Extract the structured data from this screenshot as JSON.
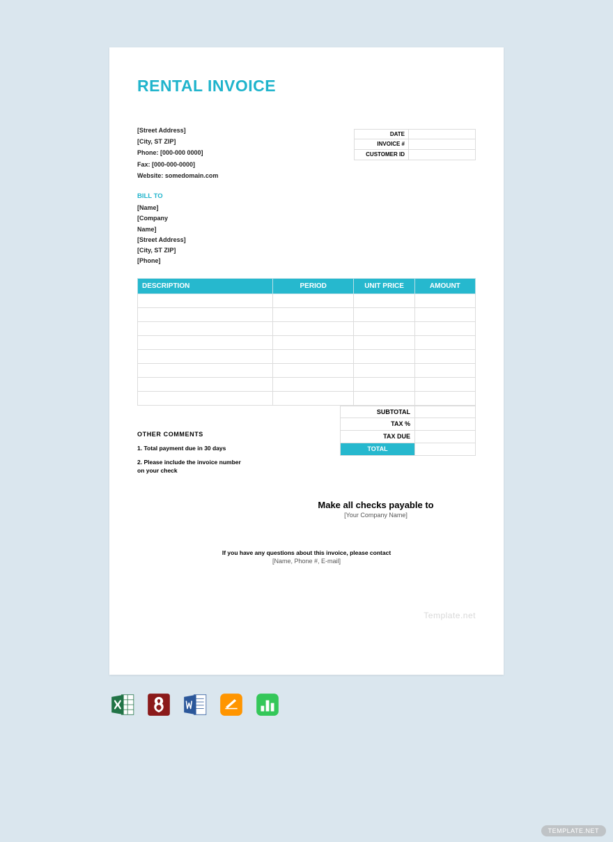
{
  "colors": {
    "page_bg": "#dae6ee",
    "accent": "#20b4cc",
    "header_bg": "#26b8ce",
    "border": "#dcdcdc"
  },
  "title": "RENTAL INVOICE",
  "from": {
    "street": "[Street Address]",
    "city": "[City, ST  ZIP]",
    "phone": "Phone: [000-000 0000]",
    "fax": "Fax: [000-000-0000]",
    "website": "Website: somedomain.com"
  },
  "meta": {
    "date_label": "DATE",
    "date_val": "",
    "invoice_label": "INVOICE #",
    "invoice_val": "",
    "customer_label": "CUSTOMER ID",
    "customer_val": ""
  },
  "billto_heading": "BILL TO",
  "billto": {
    "name": "[Name]",
    "company": "[Company Name]",
    "street": "[Street Address]",
    "city": "[City, ST  ZIP]",
    "phone": "[Phone]"
  },
  "table": {
    "headers": {
      "desc": "DESCRIPTION",
      "period": "PERIOD",
      "unit": "UNIT PRICE",
      "amount": "AMOUNT"
    },
    "row_count": 8
  },
  "totals": {
    "subtotal_label": "SUBTOTAL",
    "subtotal_val": "",
    "taxpct_label": "TAX %",
    "taxpct_val": "",
    "taxdue_label": "TAX DUE",
    "taxdue_val": "",
    "total_label": "TOTAL",
    "total_val": ""
  },
  "comments": {
    "heading": "OTHER  COMMENTS",
    "line1": "1. Total payment due in 30 days",
    "line2": "2. Please include the invoice number on your check"
  },
  "payable": {
    "heading": "Make all checks payable to",
    "sub": "[Your Company Name]"
  },
  "footer": {
    "line1": "If you have any questions about this invoice, please contact",
    "line2": "[Name,   Phone #,   E-mail]"
  },
  "watermark": "Template.net",
  "badge": "TEMPLATE.NET",
  "icons": {
    "excel_color": "#217346",
    "pdf_color": "#8b1a1a",
    "word_color": "#2b579a",
    "pages_color": "#ff9500",
    "numbers_color": "#34c759"
  }
}
